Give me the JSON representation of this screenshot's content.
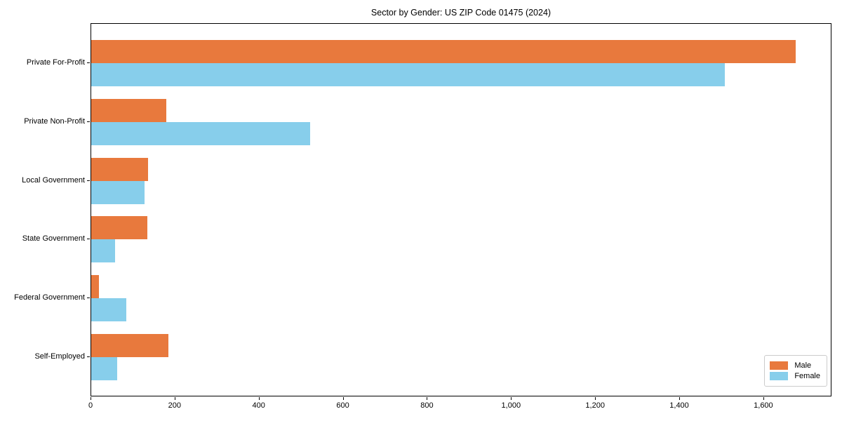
{
  "title": "Sector by Gender: US ZIP Code 01475 (2024)",
  "colors": {
    "male": "#E8793D",
    "female": "#87CEEB",
    "axis": "#000000",
    "text": "#000000",
    "legend_border": "#CCCCCC",
    "background": "#FFFFFF"
  },
  "legend": {
    "position": "lower right",
    "male_label": "Male",
    "female_label": "Female"
  },
  "chart_data": {
    "type": "bar",
    "orientation": "horizontal",
    "title": "Sector by Gender: US ZIP Code 01475 (2024)",
    "categories": [
      "Private For-Profit",
      "Private Non-Profit",
      "Local Government",
      "State Government",
      "Federal Government",
      "Self-Employed"
    ],
    "series": [
      {
        "name": "Male",
        "color": "#E8793D",
        "values": [
          1678,
          179,
          136,
          133,
          18,
          184
        ]
      },
      {
        "name": "Female",
        "color": "#87CEEB",
        "values": [
          1509,
          522,
          127,
          57,
          83,
          62
        ]
      }
    ],
    "xlabel": "",
    "ylabel": "",
    "xlim": [
      0,
      1762
    ],
    "xticks": [
      0,
      200,
      400,
      600,
      800,
      1000,
      1200,
      1400,
      1600
    ],
    "xtick_labels": [
      "0",
      "200",
      "400",
      "600",
      "800",
      "1,000",
      "1,200",
      "1,400",
      "1,600"
    ],
    "grid": false,
    "legend_position": "lower right"
  }
}
